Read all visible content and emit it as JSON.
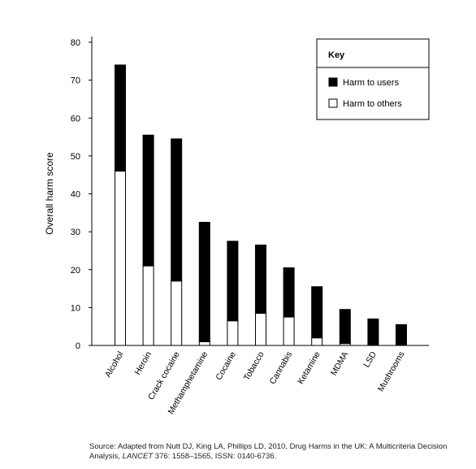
{
  "chart_data": {
    "type": "bar",
    "stacked": true,
    "categories": [
      "Alcohol",
      "Heroin",
      "Crack cocaine",
      "Methamphetamine",
      "Cocaine",
      "Tobacco",
      "Cannabis",
      "Ketamine",
      "MDMA",
      "LSD",
      "Mushrooms"
    ],
    "series": [
      {
        "name": "Harm to others",
        "color": "#ffffff",
        "values": [
          46,
          21,
          17,
          1,
          6.5,
          8.5,
          7.5,
          2,
          0.5,
          0,
          0
        ]
      },
      {
        "name": "Harm to users",
        "color": "#000000",
        "values": [
          28,
          34.5,
          37.5,
          31.5,
          21,
          18,
          13,
          13.5,
          9,
          7,
          5.5
        ]
      }
    ],
    "ylabel": "Overall harm score",
    "xlabel": "",
    "ylim": [
      0,
      80
    ],
    "yticks": [
      0,
      10,
      20,
      30,
      40,
      50,
      60,
      70,
      80
    ],
    "grid": false,
    "legend": {
      "title": "Key",
      "placement": "top-right",
      "items": [
        {
          "label": "Harm to users",
          "color": "#000000"
        },
        {
          "label": "Harm to others",
          "color": "#ffffff"
        }
      ]
    }
  },
  "source": {
    "prefix": "Source: Adapted from Nutt DJ, King LA, Phillips LD, 2010, Drug Harms in the UK: A Multicriteria Decision Analysis, ",
    "journal": "LANCET",
    "suffix": " 376: 1558–1565, ISSN: 0140-6736."
  }
}
